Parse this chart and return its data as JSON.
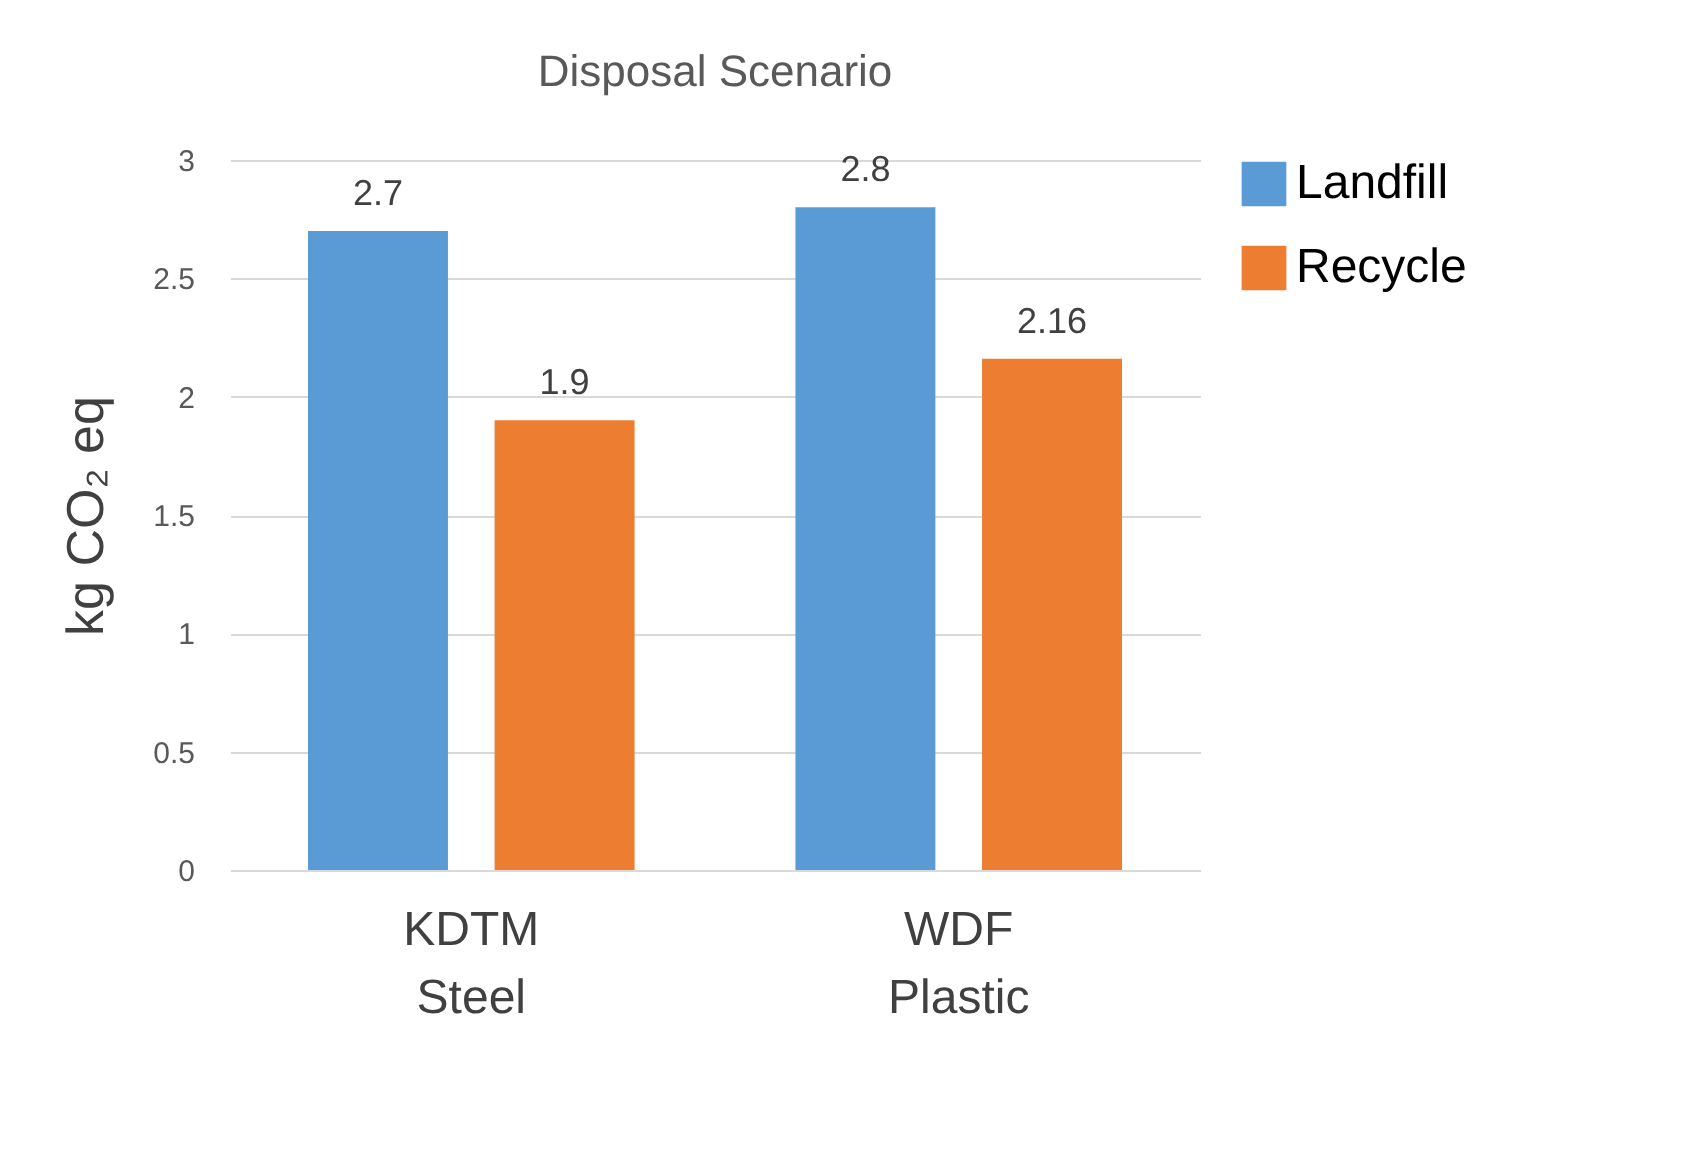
{
  "chart_data": {
    "type": "bar",
    "title": "Disposal Scenario",
    "ylabel": "kg CO₂ eq",
    "categories": [
      "KDTM Steel",
      "WDF Plastic"
    ],
    "series": [
      {
        "name": "Landfill",
        "color": "#5b9bd5",
        "values": [
          2.7,
          2.8
        ]
      },
      {
        "name": "Recycle",
        "color": "#ed7d31",
        "values": [
          1.9,
          2.16
        ]
      }
    ],
    "ylim": [
      0,
      3
    ],
    "yticks": [
      0,
      0.5,
      1,
      1.5,
      2,
      2.5,
      3
    ],
    "grid": "y",
    "legend": "right",
    "data_labels": true
  }
}
